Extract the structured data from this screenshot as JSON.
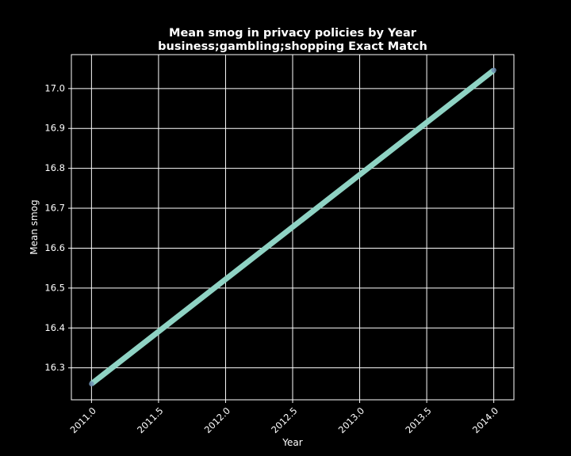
{
  "chart_data": {
    "type": "line",
    "title": "Mean smog in privacy policies by Year",
    "subtitle": "business;gambling;shopping Exact Match",
    "xlabel": "Year",
    "ylabel": "Mean smog",
    "x": [
      2011,
      2014
    ],
    "series": [
      {
        "values": [
          16.26,
          17.046
        ]
      }
    ],
    "xlim": [
      2010.85,
      2014.15
    ],
    "ylim": [
      16.22,
      17.085
    ],
    "xticks": [
      2011.0,
      2011.5,
      2012.0,
      2012.5,
      2013.0,
      2013.5,
      2014.0
    ],
    "xtick_labels": [
      "2011.0",
      "2011.5",
      "2012.0",
      "2012.5",
      "2013.0",
      "2013.5",
      "2014.0"
    ],
    "yticks": [
      16.3,
      16.4,
      16.5,
      16.6,
      16.7,
      16.8,
      16.9,
      17.0
    ],
    "ytick_labels": [
      "16.3",
      "16.4",
      "16.5",
      "16.6",
      "16.7",
      "16.8",
      "16.9",
      "17.0"
    ],
    "grid": true,
    "colors": {
      "background": "#000000",
      "line": "#8fd3c4",
      "marker": "#6f8fb4",
      "grid": "#ffffff",
      "text": "#ffffff"
    }
  }
}
